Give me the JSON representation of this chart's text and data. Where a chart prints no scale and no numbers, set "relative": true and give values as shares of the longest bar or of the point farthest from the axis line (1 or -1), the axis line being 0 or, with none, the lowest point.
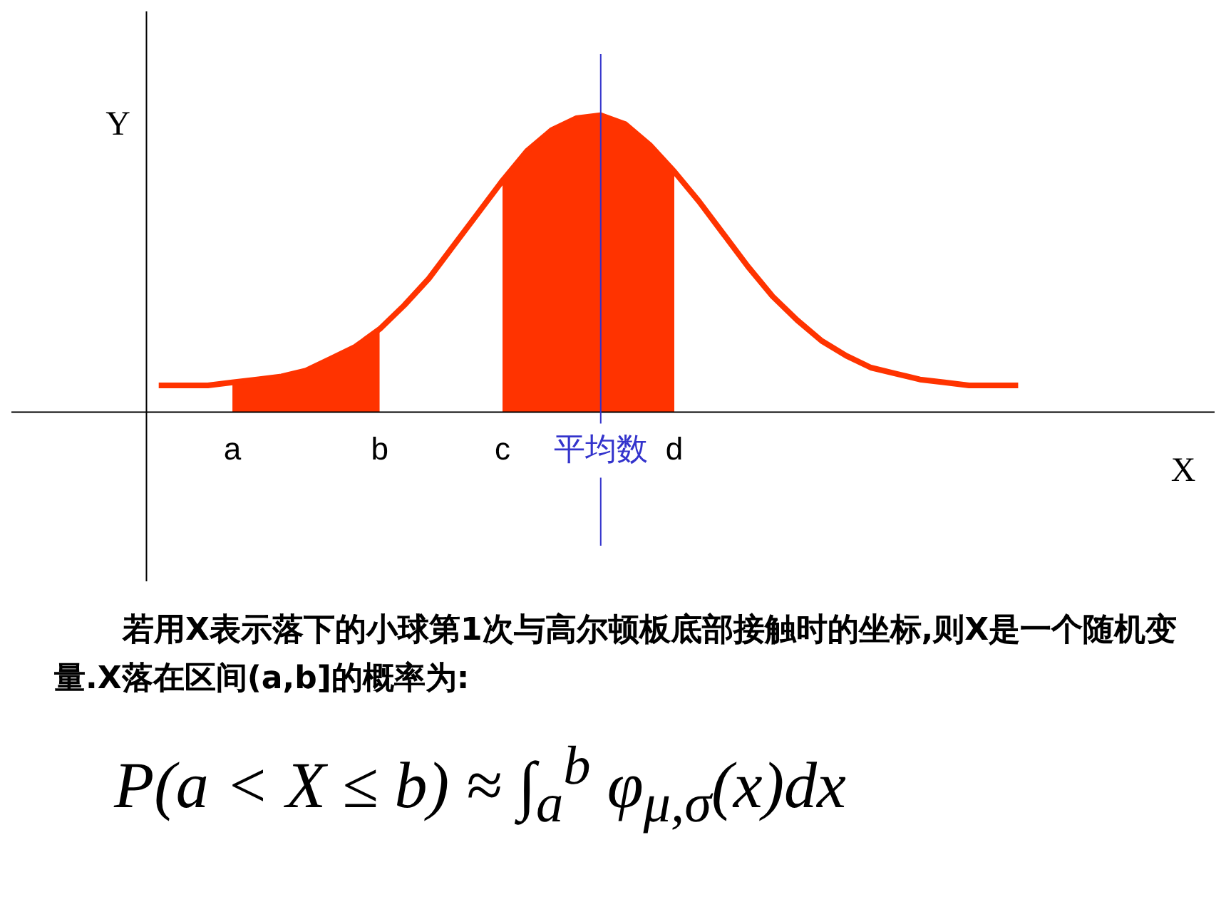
{
  "chart_data": {
    "type": "line",
    "relative": true,
    "categories": [
      null,
      null,
      null,
      "a",
      null,
      null,
      null,
      null,
      null,
      "b",
      null,
      null,
      null,
      null,
      "c",
      null,
      null,
      null,
      "平均数",
      null,
      null,
      "d",
      null,
      null,
      null,
      null,
      null,
      null,
      null,
      null,
      null,
      null,
      null,
      null,
      null,
      null
    ],
    "xlabel": "X",
    "ylabel": "Y",
    "grid": false,
    "legend": false,
    "marker": "none",
    "series": [
      {
        "type": "line",
        "color": "#ff3300",
        "values": [
          0.09,
          0.09,
          0.09,
          0.1,
          0.11,
          0.12,
          0.14,
          0.18,
          0.22,
          0.28,
          0.36,
          0.45,
          0.56,
          0.67,
          0.78,
          0.88,
          0.95,
          0.99,
          1.0,
          0.97,
          0.9,
          0.81,
          0.71,
          0.6,
          0.49,
          0.39,
          0.31,
          0.24,
          0.19,
          0.15,
          0.13,
          0.11,
          0.1,
          0.09,
          0.09,
          0.09
        ]
      },
      {
        "type": "area",
        "color": "#ff3300",
        "values": [
          null,
          null,
          null,
          0.1,
          0.11,
          0.12,
          0.14,
          0.18,
          0.22,
          0.28,
          null,
          null,
          null,
          null,
          null,
          null,
          null,
          null,
          null,
          null,
          null,
          null,
          null,
          null,
          null,
          null,
          null,
          null,
          null,
          null,
          null,
          null,
          null,
          null,
          null,
          null
        ]
      },
      {
        "type": "area",
        "color": "#ff3300",
        "values": [
          null,
          null,
          null,
          null,
          null,
          null,
          null,
          null,
          null,
          null,
          null,
          null,
          null,
          null,
          0.78,
          0.88,
          0.95,
          0.99,
          1.0,
          0.97,
          0.9,
          0.81,
          null,
          null,
          null,
          null,
          null,
          null,
          null,
          null,
          null,
          null,
          null,
          null,
          null,
          null
        ]
      }
    ],
    "ref_lines": [
      {
        "axis": "x",
        "value": "平均数",
        "color": "#3333cc"
      }
    ],
    "annotations": [
      "若用X表示落下的小球第1次与高尔顿板底部接触时的坐标,则X是一个随机变量.X落在区间(a,b]的概率为:",
      "P(a < X ≤ b) ≈ ∫$_{a}$$^{b}$ φ$_{μ,σ}$(x)dx"
    ]
  }
}
